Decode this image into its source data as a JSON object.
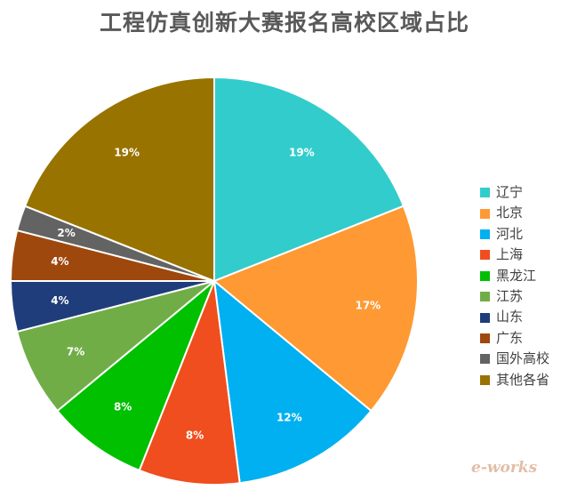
{
  "chart_data": {
    "type": "pie",
    "title": "工程仿真创新大赛报名高校区域占比",
    "start_angle_deg": 0,
    "direction": "clockwise",
    "legend_position": "right",
    "slices": [
      {
        "label": "辽宁",
        "value": 19,
        "value_label": "19%",
        "color": "#33CCCC"
      },
      {
        "label": "北京",
        "value": 17,
        "value_label": "17%",
        "color": "#FF9933"
      },
      {
        "label": "河北",
        "value": 12,
        "value_label": "12%",
        "color": "#00B0F0"
      },
      {
        "label": "上海",
        "value": 8,
        "value_label": "8%",
        "color": "#F04E1E"
      },
      {
        "label": "黑龙江",
        "value": 8,
        "value_label": "8%",
        "color": "#00C000"
      },
      {
        "label": "江苏",
        "value": 7,
        "value_label": "7%",
        "color": "#70AD47"
      },
      {
        "label": "山东",
        "value": 4,
        "value_label": "4%",
        "color": "#1F3D7A"
      },
      {
        "label": "广东",
        "value": 4,
        "value_label": "4%",
        "color": "#9E480E"
      },
      {
        "label": "国外高校",
        "value": 2,
        "value_label": "2%",
        "color": "#636363"
      },
      {
        "label": "其他各省",
        "value": 19,
        "value_label": "19%",
        "color": "#997300"
      }
    ]
  },
  "watermark": "e-works"
}
